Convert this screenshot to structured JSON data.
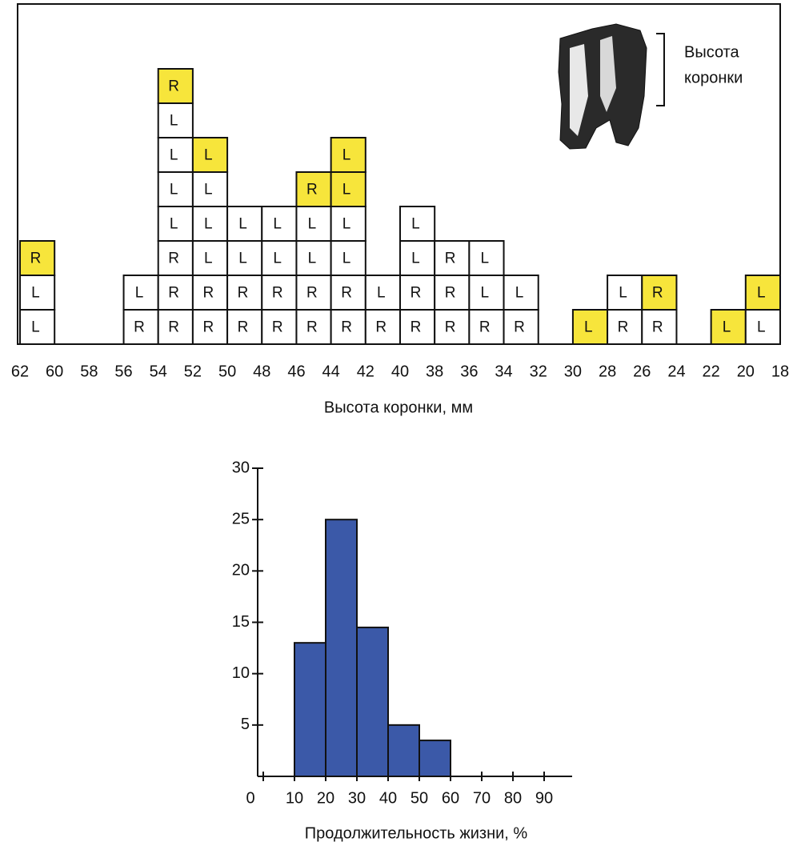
{
  "chart_data": [
    {
      "type": "tiles",
      "xlabel": "Высота коронки, мм",
      "annotation": [
        "Высота",
        "коронки"
      ],
      "xlim": [
        62,
        18
      ],
      "xticks": [
        62,
        60,
        58,
        56,
        54,
        52,
        50,
        48,
        46,
        44,
        42,
        40,
        38,
        36,
        34,
        32,
        30,
        28,
        26,
        24,
        22,
        20,
        18
      ],
      "columns": [
        {
          "bin": [
            62,
            60
          ],
          "tiles": [
            {
              "label": "L",
              "color": "#ffffff"
            },
            {
              "label": "L",
              "color": "#ffffff"
            },
            {
              "label": "R",
              "color": "#f7e53b"
            }
          ]
        },
        {
          "bin": [
            56,
            54
          ],
          "tiles": [
            {
              "label": "R",
              "color": "#ffffff"
            },
            {
              "label": "L",
              "color": "#ffffff"
            }
          ]
        },
        {
          "bin": [
            54,
            52
          ],
          "tiles": [
            {
              "label": "R",
              "color": "#ffffff"
            },
            {
              "label": "R",
              "color": "#ffffff"
            },
            {
              "label": "R",
              "color": "#ffffff"
            },
            {
              "label": "L",
              "color": "#ffffff"
            },
            {
              "label": "L",
              "color": "#ffffff"
            },
            {
              "label": "L",
              "color": "#ffffff"
            },
            {
              "label": "L",
              "color": "#ffffff"
            },
            {
              "label": "R",
              "color": "#f7e53b"
            }
          ]
        },
        {
          "bin": [
            52,
            50
          ],
          "tiles": [
            {
              "label": "R",
              "color": "#ffffff"
            },
            {
              "label": "R",
              "color": "#ffffff"
            },
            {
              "label": "L",
              "color": "#ffffff"
            },
            {
              "label": "L",
              "color": "#ffffff"
            },
            {
              "label": "L",
              "color": "#ffffff"
            },
            {
              "label": "L",
              "color": "#f7e53b"
            }
          ]
        },
        {
          "bin": [
            50,
            48
          ],
          "tiles": [
            {
              "label": "R",
              "color": "#ffffff"
            },
            {
              "label": "R",
              "color": "#ffffff"
            },
            {
              "label": "L",
              "color": "#ffffff"
            },
            {
              "label": "L",
              "color": "#ffffff"
            }
          ]
        },
        {
          "bin": [
            48,
            46
          ],
          "tiles": [
            {
              "label": "R",
              "color": "#ffffff"
            },
            {
              "label": "R",
              "color": "#ffffff"
            },
            {
              "label": "L",
              "color": "#ffffff"
            },
            {
              "label": "L",
              "color": "#ffffff"
            }
          ]
        },
        {
          "bin": [
            46,
            44
          ],
          "tiles": [
            {
              "label": "R",
              "color": "#ffffff"
            },
            {
              "label": "R",
              "color": "#ffffff"
            },
            {
              "label": "L",
              "color": "#ffffff"
            },
            {
              "label": "L",
              "color": "#ffffff"
            },
            {
              "label": "R",
              "color": "#f7e53b"
            }
          ]
        },
        {
          "bin": [
            44,
            42
          ],
          "tiles": [
            {
              "label": "R",
              "color": "#ffffff"
            },
            {
              "label": "R",
              "color": "#ffffff"
            },
            {
              "label": "L",
              "color": "#ffffff"
            },
            {
              "label": "L",
              "color": "#ffffff"
            },
            {
              "label": "L",
              "color": "#f7e53b"
            },
            {
              "label": "L",
              "color": "#f7e53b"
            }
          ]
        },
        {
          "bin": [
            42,
            40
          ],
          "tiles": [
            {
              "label": "R",
              "color": "#ffffff"
            },
            {
              "label": "L",
              "color": "#ffffff"
            }
          ]
        },
        {
          "bin": [
            40,
            38
          ],
          "tiles": [
            {
              "label": "R",
              "color": "#ffffff"
            },
            {
              "label": "R",
              "color": "#ffffff"
            },
            {
              "label": "L",
              "color": "#ffffff"
            },
            {
              "label": "L",
              "color": "#ffffff"
            }
          ]
        },
        {
          "bin": [
            38,
            36
          ],
          "tiles": [
            {
              "label": "R",
              "color": "#ffffff"
            },
            {
              "label": "R",
              "color": "#ffffff"
            },
            {
              "label": "R",
              "color": "#ffffff"
            }
          ]
        },
        {
          "bin": [
            36,
            34
          ],
          "tiles": [
            {
              "label": "R",
              "color": "#ffffff"
            },
            {
              "label": "L",
              "color": "#ffffff"
            },
            {
              "label": "L",
              "color": "#ffffff"
            }
          ]
        },
        {
          "bin": [
            34,
            32
          ],
          "tiles": [
            {
              "label": "R",
              "color": "#ffffff"
            },
            {
              "label": "L",
              "color": "#ffffff"
            }
          ]
        },
        {
          "bin": [
            30,
            28
          ],
          "tiles": [
            {
              "label": "L",
              "color": "#f7e53b"
            }
          ]
        },
        {
          "bin": [
            28,
            26
          ],
          "tiles": [
            {
              "label": "R",
              "color": "#ffffff"
            },
            {
              "label": "L",
              "color": "#ffffff"
            }
          ]
        },
        {
          "bin": [
            26,
            24
          ],
          "tiles": [
            {
              "label": "R",
              "color": "#ffffff"
            },
            {
              "label": "R",
              "color": "#f7e53b"
            }
          ]
        },
        {
          "bin": [
            22,
            20
          ],
          "tiles": [
            {
              "label": "L",
              "color": "#f7e53b"
            }
          ]
        },
        {
          "bin": [
            20,
            18
          ],
          "tiles": [
            {
              "label": "L",
              "color": "#ffffff"
            },
            {
              "label": "L",
              "color": "#f7e53b"
            }
          ]
        }
      ]
    },
    {
      "type": "histogram",
      "xlabel": "Продолжительность жизни, %",
      "bins": [
        10,
        20,
        30,
        40,
        50,
        60
      ],
      "values": [
        13,
        25,
        14.5,
        5,
        3.5
      ],
      "color": "#3b59a8",
      "xlim": [
        0,
        100
      ],
      "xticks": [
        0,
        10,
        20,
        30,
        40,
        50,
        60,
        70,
        80,
        90
      ],
      "ylim": [
        0,
        30
      ],
      "yticks": [
        5,
        10,
        15,
        20,
        25,
        30
      ]
    }
  ]
}
